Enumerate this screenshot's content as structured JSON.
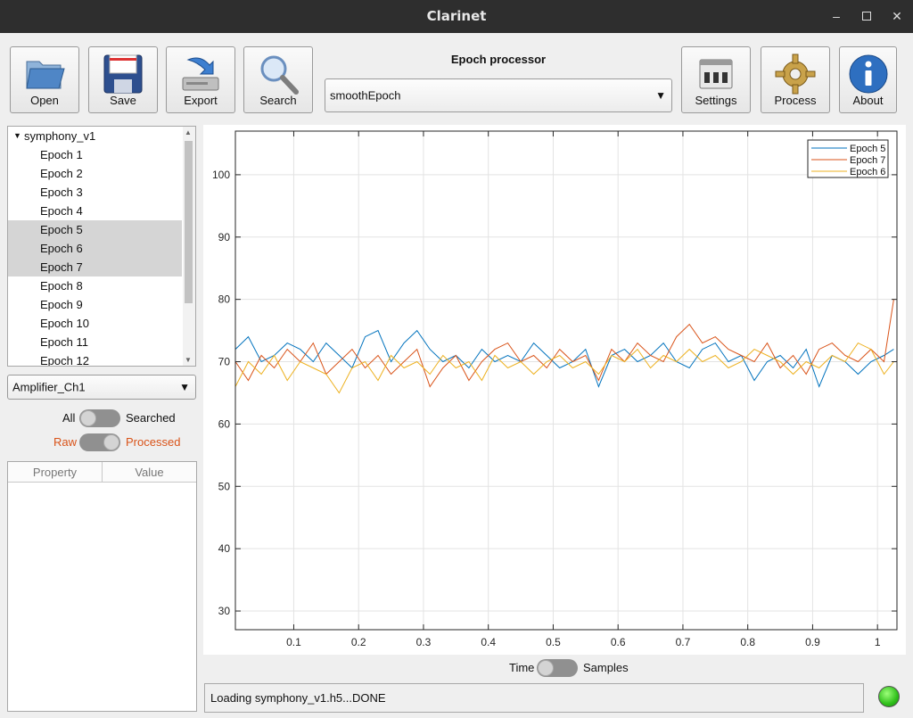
{
  "window": {
    "title": "Clarinet",
    "controls": [
      "minimize",
      "maximize",
      "close"
    ]
  },
  "toolbar": {
    "open": "Open",
    "save": "Save",
    "export": "Export",
    "search": "Search",
    "settings": "Settings",
    "process": "Process",
    "about": "About"
  },
  "epoch_processor": {
    "label": "Epoch processor",
    "selected": "smoothEpoch"
  },
  "tree": {
    "root": "symphony_v1",
    "items": [
      {
        "label": "Epoch 1",
        "selected": false
      },
      {
        "label": "Epoch 2",
        "selected": false
      },
      {
        "label": "Epoch 3",
        "selected": false
      },
      {
        "label": "Epoch 4",
        "selected": false
      },
      {
        "label": "Epoch 5",
        "selected": true
      },
      {
        "label": "Epoch 6",
        "selected": true
      },
      {
        "label": "Epoch 7",
        "selected": true
      },
      {
        "label": "Epoch 8",
        "selected": false
      },
      {
        "label": "Epoch 9",
        "selected": false
      },
      {
        "label": "Epoch 10",
        "selected": false
      },
      {
        "label": "Epoch 11",
        "selected": false
      },
      {
        "label": "Epoch 12",
        "selected": false
      }
    ]
  },
  "channel": {
    "selected": "Amplifier_Ch1"
  },
  "toggles": {
    "all_label": "All",
    "searched_label": "Searched",
    "raw_label": "Raw",
    "processed_label": "Processed",
    "time_label": "Time",
    "samples_label": "Samples",
    "raw_color": "#d95319",
    "processed_color": "#d95319"
  },
  "property_table": {
    "headers": [
      "Property",
      "Value"
    ]
  },
  "status": {
    "text": "Loading symphony_v1.h5...DONE",
    "indicator": "green"
  },
  "chart_data": {
    "type": "line",
    "xlim": [
      0.01,
      1.03
    ],
    "ylim": [
      27,
      107
    ],
    "xticks": [
      0.1,
      0.2,
      0.3,
      0.4,
      0.5,
      0.6,
      0.7,
      0.8,
      0.9,
      1
    ],
    "xtick_labels": [
      "0.1",
      "0.2",
      "0.3",
      "0.4",
      "0.5",
      "0.6",
      "0.7",
      "0.8",
      "0.9",
      "1"
    ],
    "yticks": [
      30,
      40,
      50,
      60,
      70,
      80,
      90,
      100
    ],
    "ytick_labels": [
      "30",
      "40",
      "50",
      "60",
      "70",
      "80",
      "90",
      "100"
    ],
    "grid": true,
    "legend_position": "top-right",
    "series": [
      {
        "name": "Epoch 5",
        "color": "#0072bd",
        "x": [
          0.01,
          0.03,
          0.05,
          0.07,
          0.09,
          0.11,
          0.13,
          0.15,
          0.17,
          0.19,
          0.21,
          0.23,
          0.25,
          0.27,
          0.29,
          0.31,
          0.33,
          0.35,
          0.37,
          0.39,
          0.41,
          0.43,
          0.45,
          0.47,
          0.49,
          0.51,
          0.53,
          0.55,
          0.57,
          0.59,
          0.61,
          0.63,
          0.65,
          0.67,
          0.69,
          0.71,
          0.73,
          0.75,
          0.77,
          0.79,
          0.81,
          0.83,
          0.85,
          0.87,
          0.89,
          0.91,
          0.93,
          0.95,
          0.97,
          0.99,
          1.01,
          1.025
        ],
        "y": [
          72,
          74,
          70,
          71,
          73,
          72,
          70,
          73,
          71,
          69,
          74,
          75,
          70,
          73,
          75,
          72,
          70,
          71,
          69,
          72,
          70,
          71,
          70,
          73,
          71,
          69,
          70,
          72,
          66,
          71,
          72,
          70,
          71,
          73,
          70,
          69,
          72,
          73,
          70,
          71,
          67,
          70,
          71,
          69,
          72,
          66,
          71,
          70,
          68,
          70,
          71,
          72
        ]
      },
      {
        "name": "Epoch 7",
        "color": "#d95319",
        "x": [
          0.01,
          0.03,
          0.05,
          0.07,
          0.09,
          0.11,
          0.13,
          0.15,
          0.17,
          0.19,
          0.21,
          0.23,
          0.25,
          0.27,
          0.29,
          0.31,
          0.33,
          0.35,
          0.37,
          0.39,
          0.41,
          0.43,
          0.45,
          0.47,
          0.49,
          0.51,
          0.53,
          0.55,
          0.57,
          0.59,
          0.61,
          0.63,
          0.65,
          0.67,
          0.69,
          0.71,
          0.73,
          0.75,
          0.77,
          0.79,
          0.81,
          0.83,
          0.85,
          0.87,
          0.89,
          0.91,
          0.93,
          0.95,
          0.97,
          0.99,
          1.01,
          1.025
        ],
        "y": [
          70,
          67,
          71,
          69,
          72,
          70,
          73,
          68,
          70,
          72,
          69,
          71,
          68,
          70,
          72,
          66,
          69,
          71,
          67,
          70,
          72,
          73,
          70,
          71,
          69,
          72,
          70,
          71,
          67,
          72,
          70,
          73,
          71,
          70,
          74,
          76,
          73,
          74,
          72,
          71,
          70,
          73,
          69,
          71,
          68,
          72,
          73,
          71,
          70,
          72,
          70,
          80
        ]
      },
      {
        "name": "Epoch 6",
        "color": "#edb120",
        "x": [
          0.01,
          0.03,
          0.05,
          0.07,
          0.09,
          0.11,
          0.13,
          0.15,
          0.17,
          0.19,
          0.21,
          0.23,
          0.25,
          0.27,
          0.29,
          0.31,
          0.33,
          0.35,
          0.37,
          0.39,
          0.41,
          0.43,
          0.45,
          0.47,
          0.49,
          0.51,
          0.53,
          0.55,
          0.57,
          0.59,
          0.61,
          0.63,
          0.65,
          0.67,
          0.69,
          0.71,
          0.73,
          0.75,
          0.77,
          0.79,
          0.81,
          0.83,
          0.85,
          0.87,
          0.89,
          0.91,
          0.93,
          0.95,
          0.97,
          0.99,
          1.01,
          1.025
        ],
        "y": [
          66,
          70,
          68,
          71,
          67,
          70,
          69,
          68,
          65,
          69,
          70,
          67,
          71,
          69,
          70,
          68,
          71,
          69,
          70,
          67,
          71,
          69,
          70,
          68,
          70,
          71,
          69,
          70,
          68,
          71,
          70,
          72,
          69,
          71,
          70,
          72,
          70,
          71,
          69,
          70,
          72,
          71,
          70,
          68,
          70,
          69,
          71,
          70,
          73,
          72,
          68,
          70
        ]
      }
    ]
  }
}
